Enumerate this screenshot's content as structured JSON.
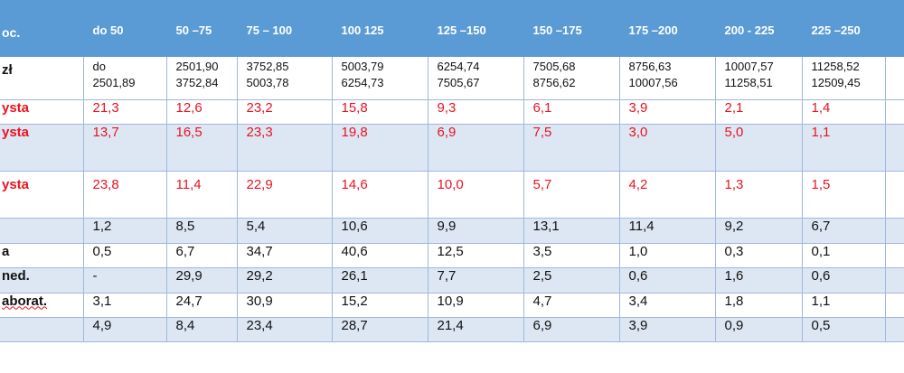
{
  "table": {
    "header": [
      "oc.",
      "do 50",
      "50 –75",
      "75 – 100",
      "100 125",
      "125 –150",
      "150 –175",
      "175 –200",
      "200 - 225",
      "225 –250",
      ""
    ],
    "income_row": {
      "label": "zł",
      "from": [
        "do",
        "2501,90",
        "3752,85",
        "5003,79",
        "6254,74",
        "7505,68",
        "8756,63",
        "10007,57",
        "11258,52",
        ""
      ],
      "to": [
        "2501,89",
        "3752,84",
        "5003,78",
        "6254,73",
        "7505,67",
        "8756,62",
        "10007,56",
        "11258,51",
        "12509,45",
        ""
      ]
    },
    "rows": [
      {
        "label": "ysta",
        "cells": [
          "21,3",
          "12,6",
          "23,2",
          "15,8",
          "9,3",
          "6,1",
          "3,9",
          "2,1",
          "1,4",
          ""
        ]
      },
      {
        "label": "ysta",
        "cells": [
          "13,7",
          "16,5",
          "23,3",
          "19,8",
          "6,9",
          "7,5",
          "3,0",
          "5,0",
          "1,1",
          ""
        ]
      },
      {
        "label": "ysta",
        "cells": [
          "23,8",
          "11,4",
          "22,9",
          "14,6",
          "10,0",
          "5,7",
          "4,2",
          "1,3",
          "1,5",
          ""
        ]
      },
      {
        "label": "",
        "cells": [
          "1,2",
          "8,5",
          "5,4",
          "10,6",
          "9,9",
          "13,1",
          "11,4",
          "9,2",
          "6,7",
          ""
        ]
      },
      {
        "label": "a",
        "cells": [
          "0,5",
          "6,7",
          "34,7",
          "40,6",
          "12,5",
          "3,5",
          "1,0",
          "0,3",
          "0,1",
          ""
        ]
      },
      {
        "label": "ned.",
        "cells": [
          "-",
          "29,9",
          "29,2",
          "26,1",
          "7,7",
          "2,5",
          "0,6",
          "1,6",
          "0,6",
          ""
        ]
      },
      {
        "label": "aborat.",
        "cells": [
          "3,1",
          "24,7",
          "30,9",
          "15,2",
          "10,9",
          "4,7",
          "3,4",
          "1,8",
          "1,1",
          ""
        ]
      },
      {
        "label": "",
        "cells": [
          "4,9",
          "8,4",
          "23,4",
          "28,7",
          "21,4",
          "6,9",
          "3,9",
          "0,9",
          "0,5",
          ""
        ]
      }
    ]
  },
  "colors": {
    "header_bg": "#5b9bd5",
    "band_bg": "#dde7f4",
    "accent_red": "#e8141f",
    "grid_line": "#9fb8dc"
  }
}
